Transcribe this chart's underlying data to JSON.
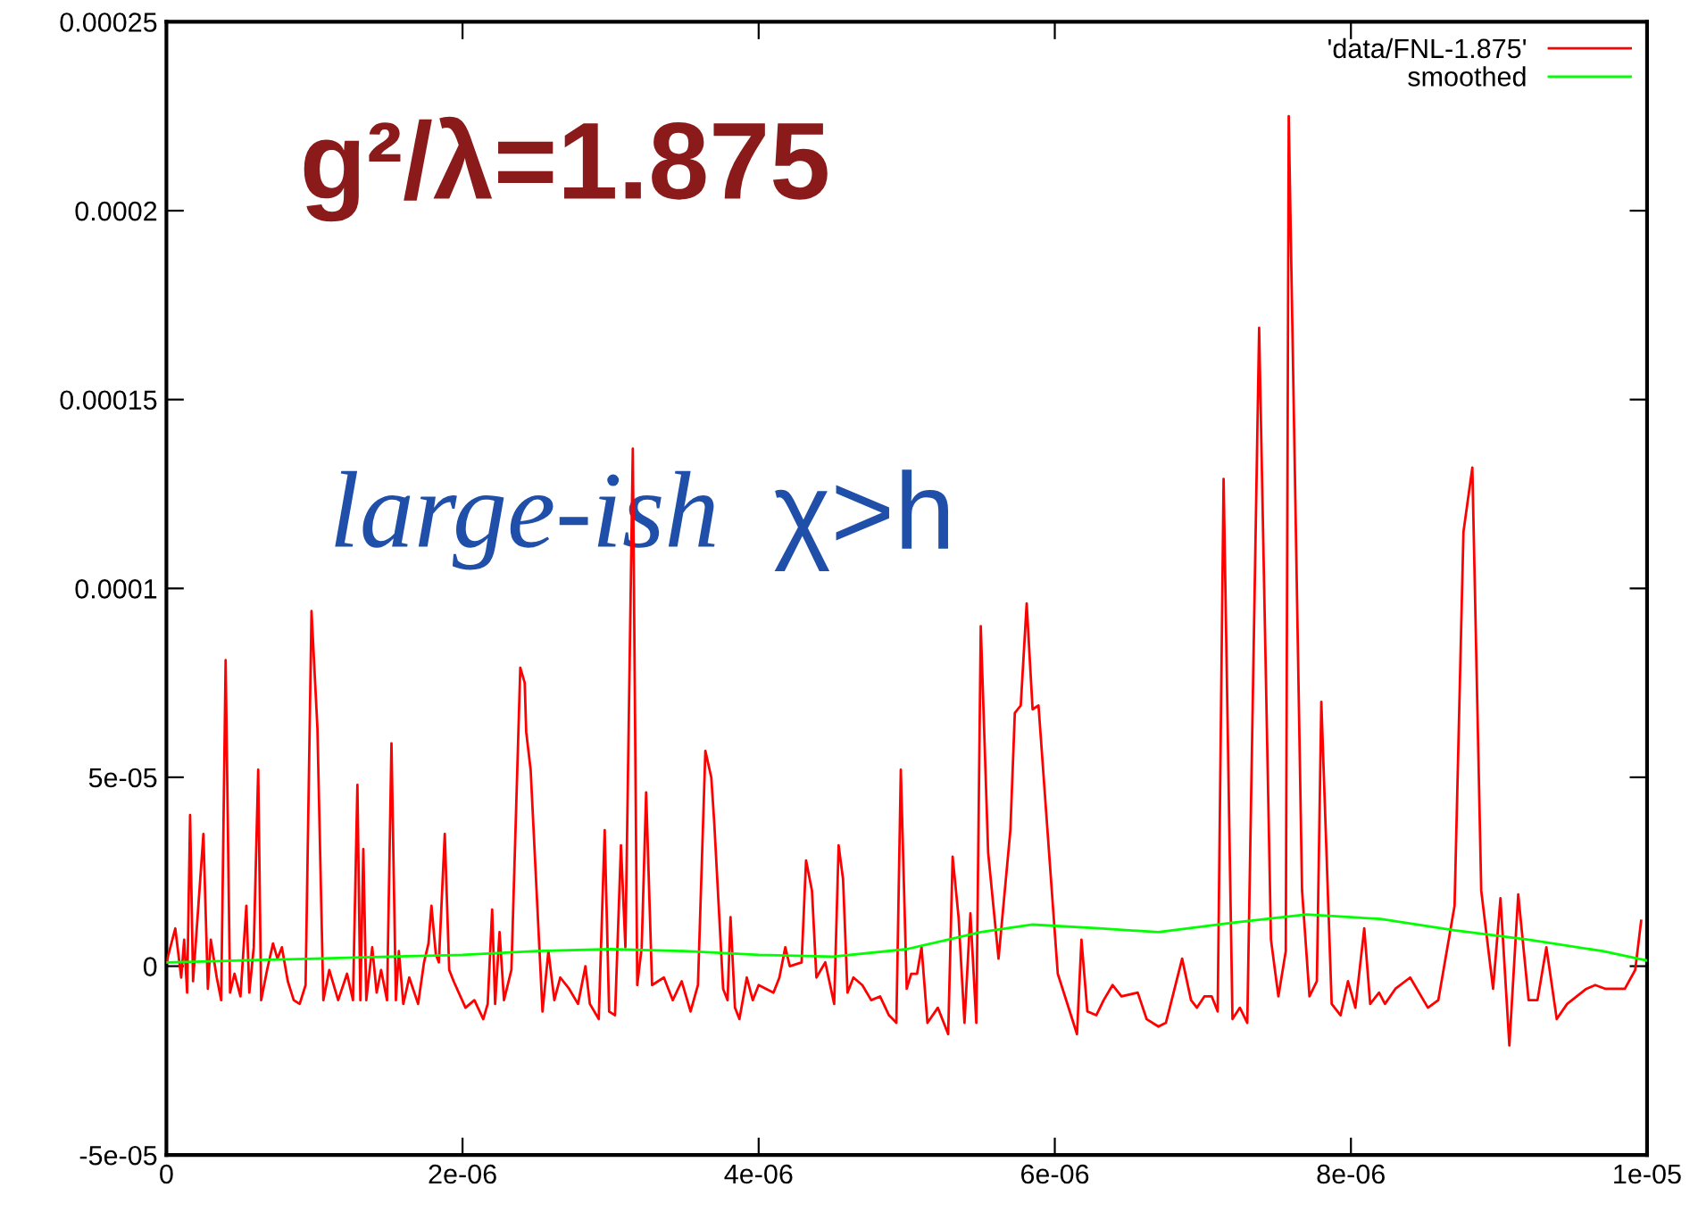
{
  "chart_data": {
    "type": "line",
    "xlim": [
      0,
      1e-05
    ],
    "ylim": [
      -5e-05,
      0.00025
    ],
    "xticks": [
      {
        "value": 0,
        "label": "0"
      },
      {
        "value": 2e-06,
        "label": "2e-06"
      },
      {
        "value": 4e-06,
        "label": "4e-06"
      },
      {
        "value": 6e-06,
        "label": "6e-06"
      },
      {
        "value": 8e-06,
        "label": "8e-06"
      },
      {
        "value": 1e-05,
        "label": "1e-05"
      }
    ],
    "yticks": [
      {
        "value": -5e-05,
        "label": "-5e-05"
      },
      {
        "value": 0,
        "label": "0"
      },
      {
        "value": 5e-05,
        "label": "5e-05"
      },
      {
        "value": 0.0001,
        "label": "0.0001"
      },
      {
        "value": 0.00015,
        "label": "0.00015"
      },
      {
        "value": 0.0002,
        "label": "0.0002"
      },
      {
        "value": 0.00025,
        "label": "0.00025"
      }
    ],
    "grid": false,
    "legend": "top right",
    "annotations": [
      "g²/λ=1.875",
      "large-ish",
      "χ>h"
    ],
    "series": [
      {
        "name": "'data/FNL-1.875'",
        "color": "#ff0000",
        "x": [
          0,
          6e-08,
          1e-07,
          1.2e-07,
          1.4e-07,
          1.6e-07,
          1.8e-07,
          2.5e-07,
          2.8e-07,
          3e-07,
          3.4e-07,
          3.7e-07,
          4e-07,
          4.3e-07,
          4.6e-07,
          5e-07,
          5.4e-07,
          5.6e-07,
          5.9e-07,
          6.2e-07,
          6.4e-07,
          6.8e-07,
          7.2e-07,
          7.5e-07,
          7.8e-07,
          8.2e-07,
          8.6e-07,
          9e-07,
          9.4e-07,
          9.8e-07,
          1.02e-06,
          1.06e-06,
          1.1e-06,
          1.16e-06,
          1.22e-06,
          1.26e-06,
          1.29e-06,
          1.31e-06,
          1.33e-06,
          1.35e-06,
          1.39e-06,
          1.42e-06,
          1.45e-06,
          1.49e-06,
          1.52e-06,
          1.55e-06,
          1.57e-06,
          1.6e-06,
          1.64e-06,
          1.7e-06,
          1.74e-06,
          1.77e-06,
          1.79e-06,
          1.82e-06,
          1.84e-06,
          1.88e-06,
          1.91e-06,
          1.94e-06,
          2.02e-06,
          2.08e-06,
          2.14e-06,
          2.17e-06,
          2.2e-06,
          2.22e-06,
          2.25e-06,
          2.28e-06,
          2.33e-06,
          2.39e-06,
          2.42e-06,
          2.43e-06,
          2.46e-06,
          2.54e-06,
          2.58e-06,
          2.62e-06,
          2.66e-06,
          2.72e-06,
          2.78e-06,
          2.83e-06,
          2.86e-06,
          2.92e-06,
          2.96e-06,
          2.99e-06,
          3.03e-06,
          3.07e-06,
          3.1e-06,
          3.15e-06,
          3.18e-06,
          3.21e-06,
          3.24e-06,
          3.28e-06,
          3.36e-06,
          3.42e-06,
          3.48e-06,
          3.54e-06,
          3.59e-06,
          3.64e-06,
          3.68e-06,
          3.7e-06,
          3.76e-06,
          3.79e-06,
          3.81e-06,
          3.84e-06,
          3.87e-06,
          3.92e-06,
          3.96e-06,
          4e-06,
          4.1e-06,
          4.14e-06,
          4.18e-06,
          4.21e-06,
          4.29e-06,
          4.32e-06,
          4.36e-06,
          4.39e-06,
          4.45e-06,
          4.51e-06,
          4.54e-06,
          4.57e-06,
          4.6e-06,
          4.64e-06,
          4.7e-06,
          4.76e-06,
          4.82e-06,
          4.88e-06,
          4.93e-06,
          4.96e-06,
          5e-06,
          5.03e-06,
          5.07e-06,
          5.1e-06,
          5.14e-06,
          5.21e-06,
          5.28e-06,
          5.31e-06,
          5.35e-06,
          5.39e-06,
          5.43e-06,
          5.47e-06,
          5.5e-06,
          5.55e-06,
          5.62e-06,
          5.7e-06,
          5.73e-06,
          5.77e-06,
          5.81e-06,
          5.85e-06,
          5.89e-06,
          6.02e-06,
          6.15e-06,
          6.18e-06,
          6.22e-06,
          6.28e-06,
          6.33e-06,
          6.39e-06,
          6.45e-06,
          6.56e-06,
          6.62e-06,
          6.7e-06,
          6.75e-06,
          6.77e-06,
          6.86e-06,
          6.92e-06,
          6.96e-06,
          7.01e-06,
          7.06e-06,
          7.1e-06,
          7.14e-06,
          7.2e-06,
          7.25e-06,
          7.3e-06,
          7.38e-06,
          7.46e-06,
          7.51e-06,
          7.56e-06,
          7.58e-06,
          7.67e-06,
          7.72e-06,
          7.77e-06,
          7.8e-06,
          7.87e-06,
          7.93e-06,
          7.98e-06,
          8.03e-06,
          8.09e-06,
          8.13e-06,
          8.19e-06,
          8.23e-06,
          8.3e-06,
          8.4e-06,
          8.52e-06,
          8.59e-06,
          8.7e-06,
          8.76e-06,
          8.82e-06,
          8.88e-06,
          8.96e-06,
          9.01e-06,
          9.07e-06,
          9.13e-06,
          9.2e-06,
          9.26e-06,
          9.32e-06,
          9.39e-06,
          9.46e-06,
          9.59e-06,
          9.65e-06,
          9.72e-06,
          9.85e-06,
          9.92e-06,
          9.96e-06
        ],
        "values": [
          1e-06,
          1e-05,
          -3e-06,
          7e-06,
          -7e-06,
          4e-05,
          -4e-06,
          3.5e-05,
          -6e-06,
          7e-06,
          -3e-06,
          -9e-06,
          8.1e-05,
          -7e-06,
          -2e-06,
          -8e-06,
          1.6e-05,
          -7e-06,
          5e-06,
          5.2e-05,
          -9e-06,
          -1e-06,
          6e-06,
          2e-06,
          5e-06,
          -4e-06,
          -9e-06,
          -1e-05,
          -5e-06,
          9.4e-05,
          6.3e-05,
          -9e-06,
          -1e-06,
          -9e-06,
          -2e-06,
          -9e-06,
          4.8e-05,
          -9e-06,
          3.1e-05,
          -9e-06,
          5e-06,
          -7e-06,
          -1e-06,
          -9e-06,
          5.9e-05,
          -9e-06,
          4e-06,
          -1e-05,
          -3e-06,
          -1e-05,
          1e-06,
          6e-06,
          1.6e-05,
          3e-06,
          1e-06,
          3.5e-05,
          -1e-06,
          -4e-06,
          -1.1e-05,
          -9e-06,
          -1.4e-05,
          -1e-05,
          1.5e-05,
          -1e-05,
          9e-06,
          -9e-06,
          -1e-06,
          7.9e-05,
          7.5e-05,
          6.2e-05,
          5.2e-05,
          -1.2e-05,
          4e-06,
          -9e-06,
          -3e-06,
          -6e-06,
          -1e-05,
          0,
          -1e-05,
          -1.4e-05,
          3.6e-05,
          -1.2e-05,
          -1.3e-05,
          3.2e-05,
          5e-06,
          0.000137,
          -5e-06,
          5e-06,
          4.6e-05,
          -5e-06,
          -3e-06,
          -9e-06,
          -4e-06,
          -1.2e-05,
          -5e-06,
          5.7e-05,
          5e-05,
          3.8e-05,
          -6e-06,
          -9e-06,
          1.3e-05,
          -1.1e-05,
          -1.4e-05,
          -3e-06,
          -9e-06,
          -5e-06,
          -7e-06,
          -3e-06,
          5e-06,
          0,
          1e-06,
          2.8e-05,
          2e-05,
          -3e-06,
          1e-06,
          -1e-05,
          3.2e-05,
          2.3e-05,
          -7e-06,
          -3e-06,
          -5e-06,
          -9e-06,
          -8e-06,
          -1.3e-05,
          -1.5e-05,
          5.2e-05,
          -6e-06,
          -2e-06,
          -2e-06,
          5e-06,
          -1.5e-05,
          -1.1e-05,
          -1.8e-05,
          2.9e-05,
          1.3e-05,
          -1.5e-05,
          1.4e-05,
          -1.5e-05,
          9e-05,
          3e-05,
          2e-06,
          3.6e-05,
          6.7e-05,
          6.9e-05,
          9.6e-05,
          6.8e-05,
          6.9e-05,
          -2e-06,
          -1.8e-05,
          7e-06,
          -1.2e-05,
          -1.3e-05,
          -9e-06,
          -5e-06,
          -8e-06,
          -7e-06,
          -1.4e-05,
          -1.6e-05,
          -1.5e-05,
          -1.2e-05,
          2e-06,
          -9e-06,
          -1.1e-05,
          -8e-06,
          -8e-06,
          -1.2e-05,
          0.000129,
          -1.4e-05,
          -1.1e-05,
          -1.5e-05,
          0.000169,
          7e-06,
          -8e-06,
          4e-06,
          0.000225,
          2e-05,
          -8e-06,
          -4e-06,
          7e-05,
          -1e-05,
          -1.3e-05,
          -4e-06,
          -1.1e-05,
          1e-05,
          -1e-05,
          -7e-06,
          -1e-05,
          -6e-06,
          -3e-06,
          -1.1e-05,
          -9e-06,
          1.6e-05,
          0.000115,
          0.000132,
          2e-05,
          -6e-06,
          1.8e-05,
          -2.1e-05,
          1.9e-05,
          -9e-06,
          -9e-06,
          5e-06,
          -1.4e-05,
          -1e-05,
          -6e-06,
          -5e-06,
          -6e-06,
          -6e-06,
          -1e-06,
          1.2e-05
        ]
      },
      {
        "name": "smoothed",
        "color": "#00ff00",
        "x": [
          0,
          5e-07,
          1e-06,
          1.5e-06,
          2e-06,
          2.5e-06,
          3e-06,
          3.5e-06,
          4e-06,
          4.5e-06,
          5e-06,
          5.5e-06,
          5.85e-06,
          6.3e-06,
          6.7e-06,
          7.2e-06,
          7.7e-06,
          8.2e-06,
          8.7e-06,
          9.2e-06,
          9.7e-06,
          1e-05
        ],
        "values": [
          1e-06,
          1.5e-06,
          2e-06,
          2.5e-06,
          3e-06,
          4e-06,
          4.5e-06,
          4e-06,
          3e-06,
          2.5e-06,
          4.5e-06,
          9e-06,
          1.1e-05,
          1e-05,
          9e-06,
          1.15e-05,
          1.37e-05,
          1.25e-05,
          9.5e-06,
          7e-06,
          4e-06,
          1.5e-06
        ]
      }
    ]
  }
}
